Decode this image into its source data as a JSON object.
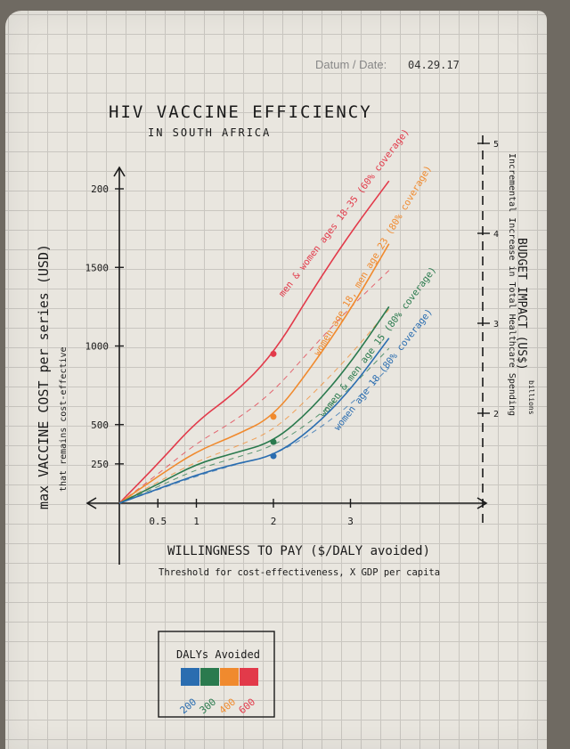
{
  "header": {
    "date_label": "Datum / Date:",
    "date_value": "04.29.17"
  },
  "chart_data": {
    "type": "line",
    "title": "HIV VACCINE EFFICIENCY",
    "subtitle": "IN SOUTH AFRICA",
    "xlabel": "WILLINGNESS TO PAY ($/DALY avoided)",
    "xlabel_sub": "Threshold for cost-effectiveness, X GDP per capita",
    "ylabel": "max VACCINE COST per series (USD)",
    "ylabel_sub": "that remains cost-effective",
    "y2label": "BUDGET IMPACT (US$)",
    "y2label_sub": "Incremental Increase in Total Healthcare Spending",
    "y2unit": "billions",
    "xticks": [
      "0.5",
      "1",
      "2",
      "3"
    ],
    "yticks": [
      "250",
      "500",
      "1000",
      "1500",
      "200"
    ],
    "y2ticks": [
      "2",
      "3",
      "4",
      "5"
    ],
    "ylim": [
      0,
      2100
    ],
    "xlim": [
      0,
      3.7
    ],
    "series": [
      {
        "name": "men & women ages 18-35 (60% coverage)",
        "color": "#e23a4a",
        "x": [
          0,
          0.5,
          1,
          1.5,
          2,
          2.5,
          3,
          3.5
        ],
        "y": [
          0,
          250,
          520,
          700,
          950,
          1350,
          1720,
          2050
        ],
        "marker_x": 2,
        "marker_y": 950
      },
      {
        "name": "women age 18, men age 23 (80% coverage)",
        "color": "#f08a2e",
        "x": [
          0,
          0.5,
          1,
          1.5,
          2,
          2.5,
          3,
          3.5
        ],
        "y": [
          0,
          170,
          330,
          430,
          550,
          870,
          1230,
          1650
        ],
        "marker_x": 2,
        "marker_y": 550
      },
      {
        "name": "women & men age 15 (80% coverage)",
        "color": "#2a7a4e",
        "x": [
          0,
          0.5,
          1,
          1.5,
          2,
          2.5,
          3,
          3.5
        ],
        "y": [
          0,
          120,
          250,
          320,
          390,
          600,
          890,
          1250
        ],
        "marker_x": 2,
        "marker_y": 390
      },
      {
        "name": "women age 18 (80% coverage)",
        "color": "#2a6db0",
        "x": [
          0,
          0.5,
          1,
          1.5,
          2,
          2.5,
          3,
          3.5
        ],
        "y": [
          0,
          90,
          180,
          250,
          300,
          470,
          720,
          1050
        ],
        "marker_x": 2,
        "marker_y": 300
      }
    ],
    "legend": {
      "title": "DALYs Avoided",
      "entries": [
        {
          "label": "200",
          "color": "#2a6db0"
        },
        {
          "label": "300",
          "color": "#2a7a4e"
        },
        {
          "label": "400",
          "color": "#f08a2e"
        },
        {
          "label": "600",
          "color": "#e23a4a"
        }
      ]
    }
  }
}
